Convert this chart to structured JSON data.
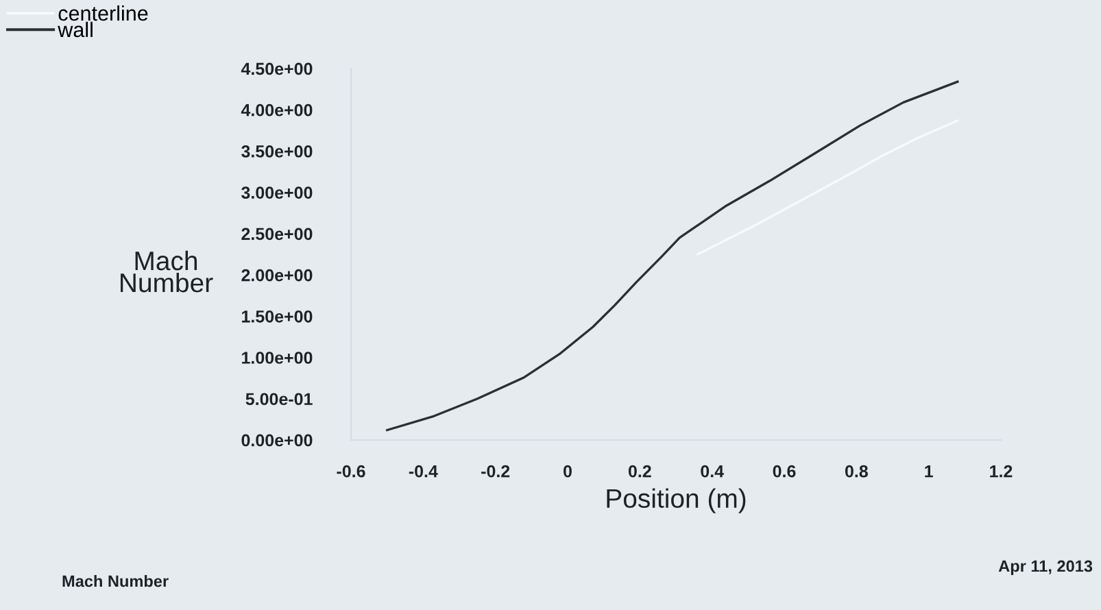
{
  "chart_data": {
    "type": "line",
    "xlabel": "Position (m)",
    "ylabel": "Mach Number",
    "annotations": [
      "Mach Number",
      "Apr 11, 2013"
    ],
    "xlim": [
      -0.6,
      1.2
    ],
    "xticks": [
      -0.6,
      -0.4,
      -0.2,
      0,
      0.2,
      0.4,
      0.6,
      0.8,
      1,
      1.2
    ],
    "ylim": [
      0,
      4.5
    ],
    "yticks": [
      {
        "value": 0,
        "label": "0.00e+00"
      },
      {
        "value": 0.5,
        "label": "5.00e-01"
      },
      {
        "value": 1,
        "label": "1.00e+00"
      },
      {
        "value": 1.5,
        "label": "1.50e+00"
      },
      {
        "value": 2,
        "label": "2.00e+00"
      },
      {
        "value": 2.5,
        "label": "2.50e+00"
      },
      {
        "value": 3,
        "label": "3.00e+00"
      },
      {
        "value": 3.5,
        "label": "3.50e+00"
      },
      {
        "value": 4,
        "label": "4.00e+00"
      },
      {
        "value": 4.5,
        "label": "4.50e+00"
      }
    ],
    "series": [
      {
        "name": "centerline",
        "color": "#f7f9fb",
        "x": [
          0.36,
          0.51,
          0.65,
          0.78,
          0.87,
          0.97,
          1.08
        ],
        "values": [
          2.25,
          2.58,
          2.91,
          3.22,
          3.44,
          3.66,
          3.87
        ]
      },
      {
        "name": "wall",
        "color": "#2b2f33",
        "x": [
          -0.5,
          -0.37,
          -0.25,
          -0.12,
          -0.02,
          0.07,
          0.13,
          0.19,
          0.26,
          0.31,
          0.44,
          0.56,
          0.68,
          0.81,
          0.93,
          1.08
        ],
        "values": [
          0.12,
          0.29,
          0.5,
          0.76,
          1.05,
          1.37,
          1.63,
          1.91,
          2.22,
          2.45,
          2.84,
          3.14,
          3.46,
          3.81,
          4.09,
          4.34
        ]
      }
    ],
    "legend": "top left",
    "grid": false,
    "marker": "none",
    "line_style": "solid"
  }
}
